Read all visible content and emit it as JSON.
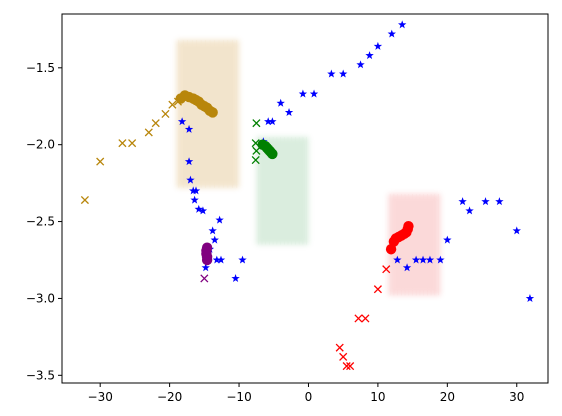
{
  "chart_data": {
    "type": "scatter",
    "title": "",
    "xlabel": "",
    "ylabel": "",
    "xlim": [
      -35.5,
      34.5
    ],
    "ylim": [
      -3.55,
      -1.15
    ],
    "x_ticks": [
      -30,
      -20,
      -10,
      0,
      10,
      20,
      30
    ],
    "x_tick_labels": [
      "−30",
      "−20",
      "−10",
      "0",
      "10",
      "20",
      "30"
    ],
    "y_ticks": [
      -3.5,
      -3.0,
      -2.5,
      -2.0,
      -1.5
    ],
    "y_tick_labels": [
      "−3.5",
      "−3.0",
      "−2.5",
      "−2.0",
      "−1.5"
    ],
    "grid": false,
    "legend": "none",
    "density_regions": [
      {
        "color": "#d4a24c",
        "x_range": [
          -19,
          -10
        ],
        "y_range": [
          -2.28,
          -1.32
        ]
      },
      {
        "color": "#7cc08a",
        "x_range": [
          -7.5,
          0
        ],
        "y_range": [
          -2.65,
          -1.95
        ]
      },
      {
        "color": "#f27a7a",
        "x_range": [
          11.5,
          19
        ],
        "y_range": [
          -2.98,
          -2.32
        ]
      }
    ],
    "series": [
      {
        "marker": "star",
        "color": "#0000ff",
        "points": [
          [
            13.5,
            -1.22
          ],
          [
            12,
            -1.28
          ],
          [
            10,
            -1.36
          ],
          [
            8.8,
            -1.42
          ],
          [
            7.5,
            -1.48
          ],
          [
            5,
            -1.54
          ],
          [
            3.3,
            -1.54
          ],
          [
            0.8,
            -1.67
          ],
          [
            -0.8,
            -1.67
          ],
          [
            -2.8,
            -1.79
          ],
          [
            -4,
            -1.73
          ],
          [
            -5.2,
            -1.85
          ],
          [
            -5.8,
            -1.85
          ],
          [
            -6.5,
            -1.98
          ],
          [
            -18.2,
            -1.85
          ],
          [
            -17.2,
            -1.9
          ],
          [
            -17.2,
            -2.11
          ],
          [
            -17,
            -2.23
          ],
          [
            -16.6,
            -2.3
          ],
          [
            -16.2,
            -2.3
          ],
          [
            -16.4,
            -2.36
          ],
          [
            -15.8,
            -2.42
          ],
          [
            -15.2,
            -2.43
          ],
          [
            -12.8,
            -2.49
          ],
          [
            -13.8,
            -2.56
          ],
          [
            -13.5,
            -2.62
          ],
          [
            -14.2,
            -2.68
          ],
          [
            -14.8,
            -2.74
          ],
          [
            -13.2,
            -2.75
          ],
          [
            -12.6,
            -2.75
          ],
          [
            -9.5,
            -2.75
          ],
          [
            -14.8,
            -2.8
          ],
          [
            -10.5,
            -2.87
          ],
          [
            12.8,
            -2.75
          ],
          [
            14.2,
            -2.8
          ],
          [
            15.5,
            -2.75
          ],
          [
            16.5,
            -2.75
          ],
          [
            17.5,
            -2.75
          ],
          [
            19,
            -2.75
          ],
          [
            20,
            -2.62
          ],
          [
            22.2,
            -2.37
          ],
          [
            23.2,
            -2.43
          ],
          [
            25.5,
            -2.37
          ],
          [
            27.5,
            -2.37
          ],
          [
            30,
            -2.56
          ],
          [
            31.9,
            -3.0
          ]
        ]
      },
      {
        "marker": "x",
        "color": "#b8860b",
        "points": [
          [
            -32.2,
            -2.36
          ],
          [
            -30,
            -2.11
          ],
          [
            -26.8,
            -1.99
          ],
          [
            -25.4,
            -1.99
          ],
          [
            -23,
            -1.92
          ],
          [
            -22,
            -1.86
          ],
          [
            -20.6,
            -1.8
          ],
          [
            -19.6,
            -1.74
          ],
          [
            -18.8,
            -1.72
          ]
        ]
      },
      {
        "marker": "circle",
        "color": "#b8860b",
        "points": [
          [
            -18.4,
            -1.7
          ],
          [
            -17.8,
            -1.68
          ],
          [
            -17.2,
            -1.69
          ],
          [
            -16.6,
            -1.7
          ],
          [
            -16.2,
            -1.71
          ],
          [
            -15.8,
            -1.72
          ],
          [
            -15.4,
            -1.74
          ],
          [
            -15,
            -1.75
          ],
          [
            -14.6,
            -1.76
          ],
          [
            -14.2,
            -1.78
          ],
          [
            -13.8,
            -1.79
          ]
        ]
      },
      {
        "marker": "x",
        "color": "#008000",
        "points": [
          [
            -7.5,
            -1.86
          ],
          [
            -7.6,
            -1.99
          ],
          [
            -7.5,
            -2.04
          ],
          [
            -7.6,
            -2.1
          ]
        ]
      },
      {
        "marker": "circle",
        "color": "#008000",
        "points": [
          [
            -6.6,
            -2.0
          ],
          [
            -6.2,
            -2.01
          ],
          [
            -6,
            -2.02
          ],
          [
            -5.8,
            -2.03
          ],
          [
            -5.6,
            -2.04
          ],
          [
            -5.4,
            -2.05
          ],
          [
            -5.2,
            -2.06
          ]
        ]
      },
      {
        "marker": "x",
        "color": "#800080",
        "points": [
          [
            -15,
            -2.87
          ]
        ]
      },
      {
        "marker": "circle",
        "color": "#800080",
        "points": [
          [
            -14.6,
            -2.67
          ],
          [
            -14.7,
            -2.69
          ],
          [
            -14.7,
            -2.71
          ],
          [
            -14.6,
            -2.73
          ],
          [
            -14.6,
            -2.75
          ]
        ]
      },
      {
        "marker": "x",
        "color": "#ff0000",
        "points": [
          [
            11.2,
            -2.81
          ],
          [
            10,
            -2.94
          ],
          [
            8.2,
            -3.13
          ],
          [
            7.2,
            -3.13
          ],
          [
            4.5,
            -3.32
          ],
          [
            5,
            -3.38
          ],
          [
            5.5,
            -3.44
          ],
          [
            6,
            -3.44
          ]
        ]
      },
      {
        "marker": "circle",
        "color": "#ff0000",
        "points": [
          [
            11.9,
            -2.68
          ],
          [
            12.3,
            -2.63
          ],
          [
            12.6,
            -2.61
          ],
          [
            13,
            -2.6
          ],
          [
            13.4,
            -2.59
          ],
          [
            13.8,
            -2.58
          ],
          [
            14.1,
            -2.57
          ],
          [
            14.3,
            -2.55
          ],
          [
            14.4,
            -2.53
          ]
        ]
      }
    ]
  }
}
